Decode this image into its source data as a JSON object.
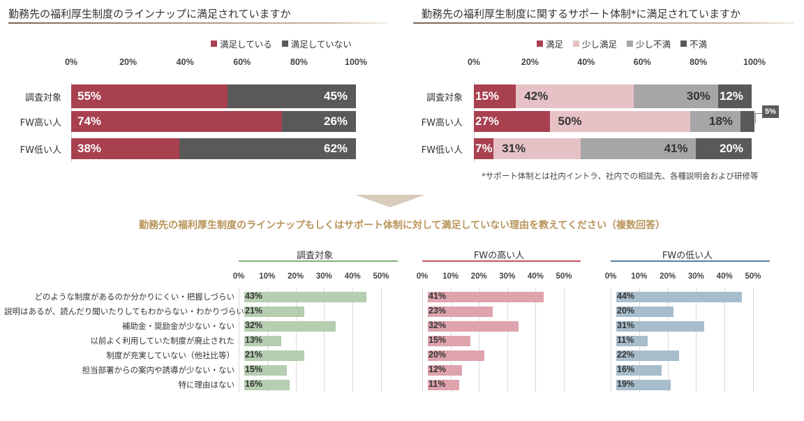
{
  "colors": {
    "satisfied": "#a8404f",
    "unsatisfied": "#595959",
    "slightly_satisfied": "#e6c2c6",
    "slightly_unsatisfied": "#a6a6a6",
    "unsatisfied_dark": "#595959",
    "green": "#b5cdb0",
    "pink": "#dea3ad",
    "blue": "#a7bdcc"
  },
  "chart_data": [
    {
      "type": "bar",
      "title": "勤務先の福利厚生制度のラインナップに満足されていますか",
      "orientation": "horizontal-stacked",
      "categories": [
        "調査対象",
        "FW高い人",
        "FW低い人"
      ],
      "series": [
        {
          "name": "満足している",
          "values": [
            55,
            74,
            38
          ]
        },
        {
          "name": "満足していない",
          "values": [
            45,
            26,
            62
          ]
        }
      ],
      "xticks": [
        "0%",
        "20%",
        "40%",
        "60%",
        "80%",
        "100%"
      ],
      "xlim": [
        0,
        100
      ],
      "legend": "top-right"
    },
    {
      "type": "bar",
      "title": "勤務先の福利厚生制度に関するサポート体制*に満足されていますか",
      "orientation": "horizontal-stacked",
      "categories": [
        "調査対象",
        "FW高い人",
        "FW低い人"
      ],
      "series": [
        {
          "name": "満足",
          "values": [
            15,
            27,
            7
          ]
        },
        {
          "name": "少し満足",
          "values": [
            42,
            50,
            31
          ]
        },
        {
          "name": "少し不満",
          "values": [
            30,
            18,
            41
          ]
        },
        {
          "name": "不満",
          "values": [
            12,
            5,
            20
          ]
        }
      ],
      "callout": "5%",
      "xticks": [
        "0%",
        "20%",
        "40%",
        "60%",
        "80%",
        "100%"
      ],
      "xlim": [
        0,
        100
      ],
      "legend": "top-right",
      "note": "*サポート体制とは社内イントラ、社内での相談先、各種説明会および研修等"
    },
    {
      "type": "bar",
      "question": "勤務先の福利厚生制度のラインナップもしくはサポート体制に対して満足していない理由を教えてください（複数回答）",
      "orientation": "horizontal",
      "categories": [
        "どのような制度があるのか分かりにくい・把握しづらい",
        "説明はあるが、読んだり聞いたりしてもわからない・わかりづらい",
        "補助金・奨励金が少ない・ない",
        "以前よく利用していた制度が廃止された",
        "制度が充実していない（他社比等）",
        "担当部署からの案内や誘導が少ない・ない",
        "特に理由はない"
      ],
      "xticks": [
        "0%",
        "10%",
        "20%",
        "30%",
        "40%",
        "50%"
      ],
      "xlim": [
        0,
        50
      ],
      "panels": [
        {
          "title": "調査対象",
          "values": [
            43,
            21,
            32,
            13,
            21,
            15,
            16
          ]
        },
        {
          "title": "FWの高い人",
          "values": [
            41,
            23,
            32,
            15,
            20,
            12,
            11
          ]
        },
        {
          "title": "FWの低い人",
          "values": [
            44,
            20,
            31,
            11,
            22,
            16,
            19
          ]
        }
      ]
    }
  ]
}
